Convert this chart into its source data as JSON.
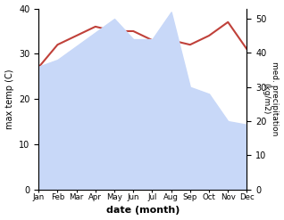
{
  "months": [
    "Jan",
    "Feb",
    "Mar",
    "Apr",
    "May",
    "Jun",
    "Jul",
    "Aug",
    "Sep",
    "Oct",
    "Nov",
    "Dec"
  ],
  "temp": [
    27,
    32,
    34,
    36,
    35,
    35,
    33,
    33,
    32,
    34,
    37,
    31
  ],
  "precip": [
    36,
    38,
    42,
    46,
    50,
    44,
    44,
    52,
    30,
    28,
    20,
    19
  ],
  "temp_color": "#c0413a",
  "precip_fill_color": "#c8d8f8",
  "ylabel_left": "max temp (C)",
  "ylabel_right": "med. precipitation\n(kg/m2)",
  "xlabel": "date (month)",
  "ylim_left": [
    0,
    40
  ],
  "ylim_right": [
    0,
    53
  ],
  "yticks_left": [
    0,
    10,
    20,
    30,
    40
  ],
  "yticks_right": [
    0,
    10,
    20,
    30,
    40,
    50
  ]
}
